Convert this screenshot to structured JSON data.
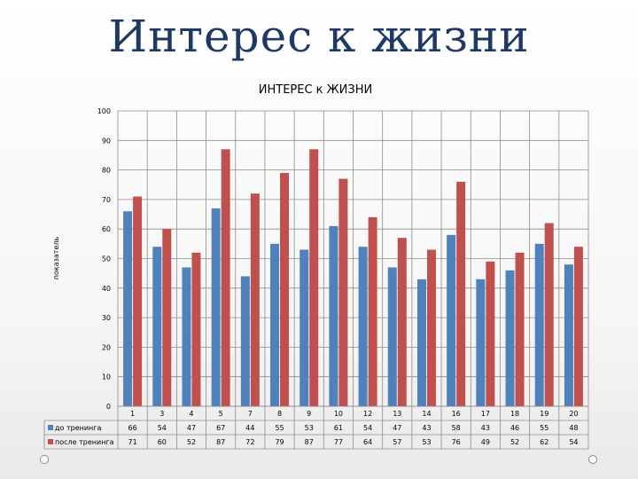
{
  "slide": {
    "title": "Интерес к жизни"
  },
  "chart_data": {
    "type": "bar",
    "title": "ИНТЕРЕС к ЖИЗНИ",
    "xlabel": "",
    "ylabel": "показатель",
    "ylim": [
      0,
      100
    ],
    "ytick_step": 10,
    "grid": true,
    "legend": "bottom-left-table",
    "categories": [
      "1",
      "3",
      "4",
      "5",
      "7",
      "8",
      "9",
      "10",
      "12",
      "13",
      "14",
      "16",
      "17",
      "18",
      "19",
      "20"
    ],
    "series": [
      {
        "name": "до тренинга",
        "color": "#4f81bd",
        "values": [
          66,
          54,
          47,
          67,
          44,
          55,
          53,
          61,
          54,
          47,
          43,
          58,
          43,
          46,
          55,
          48
        ]
      },
      {
        "name": "после тренинга",
        "color": "#c0504d",
        "values": [
          71,
          60,
          52,
          87,
          72,
          79,
          87,
          77,
          64,
          57,
          53,
          76,
          49,
          52,
          62,
          54
        ]
      }
    ]
  }
}
